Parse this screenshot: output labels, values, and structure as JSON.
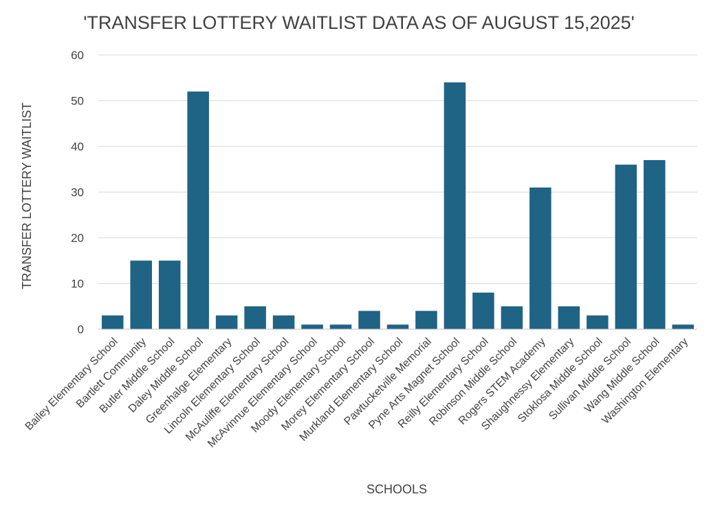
{
  "chart_data": {
    "type": "bar",
    "title": "'TRANSFER LOTTERY WAITLIST DATA AS OF AUGUST 15,2025'",
    "xlabel": "SCHOOLS",
    "ylabel": "TRANSFER LOTTERY WAITLIST",
    "ylim": [
      0,
      60
    ],
    "yticks": [
      0,
      10,
      20,
      30,
      40,
      50,
      60
    ],
    "grid": true,
    "legend": "none",
    "bar_color": "#1f6385",
    "categories": [
      "Bailey Elementary School",
      "Bartlett Community",
      "Butler Middle School",
      "Daley Middle School",
      "Greenhalge Elementary",
      "Lincoln Elementary School",
      "McAuliffe Elementary School",
      "McAvinnue Elementary School",
      "Moody Elementary School",
      "Morey Elementary School",
      "Murkland Elementary School",
      "Pawtucketville Memorial",
      "Pyne Arts Magnet School",
      "Reilly Elementary School",
      "Robinson Middle School",
      "Rogers STEM Academy",
      "Shaughnessy Elementary",
      "Stoklosa Middle School",
      "Sullivan Middle School",
      "Wang Middle School",
      "Washington Elementary"
    ],
    "values": [
      3,
      15,
      15,
      52,
      3,
      5,
      3,
      1,
      1,
      4,
      1,
      4,
      54,
      8,
      5,
      31,
      5,
      3,
      36,
      37,
      1
    ]
  }
}
